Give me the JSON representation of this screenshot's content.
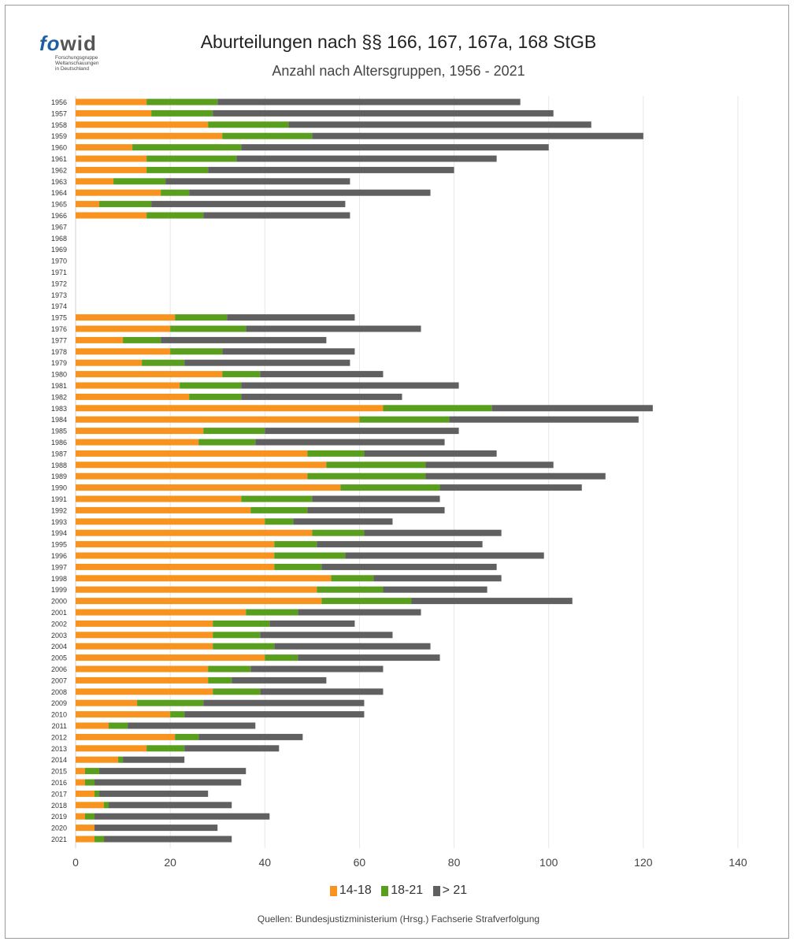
{
  "logo": {
    "fo": "fo",
    "wid": "wid",
    "line1": "Forschungsgruppe",
    "line2": "Weltanschauungen",
    "line3": "in Deutschland"
  },
  "chart_data": {
    "type": "bar",
    "orientation": "horizontal",
    "stacked": true,
    "title": "Aburteilungen nach §§ 166, 167, 167a, 168 StGB",
    "subtitle": "Anzahl nach Altersgruppen, 1956 - 2021",
    "categories": [
      "1956",
      "1957",
      "1958",
      "1959",
      "1960",
      "1961",
      "1962",
      "1963",
      "1964",
      "1965",
      "1966",
      "1967",
      "1968",
      "1969",
      "1970",
      "1971",
      "1972",
      "1973",
      "1974",
      "1975",
      "1976",
      "1977",
      "1978",
      "1979",
      "1980",
      "1981",
      "1982",
      "1983",
      "1984",
      "1985",
      "1986",
      "1987",
      "1988",
      "1989",
      "1990",
      "1991",
      "1992",
      "1993",
      "1994",
      "1995",
      "1996",
      "1997",
      "1998",
      "1999",
      "2000",
      "2001",
      "2002",
      "2003",
      "2004",
      "2005",
      "2006",
      "2007",
      "2008",
      "2009",
      "2010",
      "2011",
      "2012",
      "2013",
      "2014",
      "2015",
      "2016",
      "2017",
      "2018",
      "2019",
      "2020",
      "2021"
    ],
    "series": [
      {
        "name": "14-18",
        "color": "#f7931e",
        "values": [
          15,
          16,
          28,
          31,
          12,
          15,
          15,
          8,
          18,
          5,
          15,
          0,
          0,
          0,
          0,
          0,
          0,
          0,
          0,
          21,
          20,
          10,
          20,
          14,
          31,
          22,
          24,
          65,
          60,
          27,
          26,
          49,
          53,
          49,
          56,
          35,
          37,
          40,
          50,
          42,
          42,
          42,
          54,
          51,
          52,
          36,
          29,
          29,
          29,
          40,
          28,
          28,
          29,
          13,
          20,
          7,
          21,
          15,
          9,
          2,
          2,
          4,
          6,
          2,
          4,
          4
        ]
      },
      {
        "name": "18-21",
        "color": "#5a9e1e",
        "values": [
          15,
          13,
          17,
          19,
          23,
          19,
          13,
          11,
          6,
          11,
          12,
          0,
          0,
          0,
          0,
          0,
          0,
          0,
          0,
          11,
          16,
          8,
          11,
          9,
          8,
          13,
          11,
          23,
          19,
          13,
          12,
          12,
          21,
          25,
          21,
          15,
          12,
          6,
          11,
          9,
          15,
          10,
          9,
          14,
          19,
          11,
          12,
          10,
          13,
          7,
          9,
          5,
          10,
          14,
          3,
          4,
          5,
          8,
          1,
          3,
          2,
          1,
          1,
          2,
          0,
          2
        ]
      },
      {
        "name": "> 21",
        "color": "#606060",
        "values": [
          64,
          72,
          64,
          70,
          65,
          55,
          52,
          39,
          51,
          41,
          31,
          0,
          0,
          0,
          0,
          0,
          0,
          0,
          0,
          27,
          37,
          35,
          28,
          35,
          26,
          46,
          34,
          34,
          40,
          41,
          40,
          28,
          27,
          38,
          30,
          27,
          29,
          21,
          29,
          35,
          42,
          37,
          27,
          22,
          34,
          26,
          18,
          28,
          33,
          30,
          28,
          20,
          26,
          34,
          38,
          27,
          22,
          20,
          13,
          31,
          31,
          23,
          26,
          37,
          26,
          27
        ]
      }
    ],
    "x_ticks": [
      "0",
      "20",
      "40",
      "60",
      "80",
      "100",
      "120",
      "140"
    ],
    "xlim": [
      0,
      140
    ],
    "grid": true,
    "legend_position": "bottom"
  },
  "source": "Quellen: Bundesjustizministerium (Hrsg.) Fachserie Strafverfolgung"
}
